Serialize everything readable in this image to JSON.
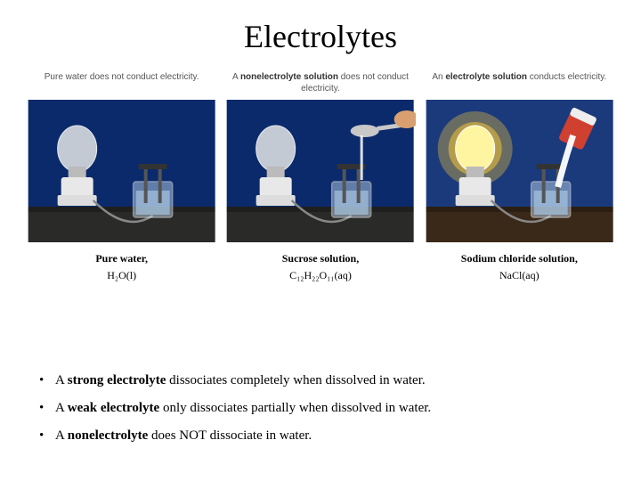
{
  "title": "Electrolytes",
  "panels": [
    {
      "caption_top_pre": "",
      "caption_top_bold": "",
      "caption_top_post": "Pure water does not conduct electricity.",
      "caption_bottom_name": "Pure water,",
      "caption_bottom_formula": "H₂O(l)",
      "bulb_glow": false,
      "show_spoon": false,
      "show_pour": false,
      "bg": "#0a2a6b",
      "table": "#2a2a28"
    },
    {
      "caption_top_pre": "A ",
      "caption_top_bold": "nonelectrolyte solution",
      "caption_top_post": " does not conduct electricity.",
      "caption_bottom_name": "Sucrose solution,",
      "caption_bottom_formula": "C₁₂H₂₂O₁₁(aq)",
      "bulb_glow": false,
      "show_spoon": true,
      "show_pour": false,
      "bg": "#0a2a6b",
      "table": "#2a2a28"
    },
    {
      "caption_top_pre": "An ",
      "caption_top_bold": "electrolyte solution",
      "caption_top_post": " conducts electricity.",
      "caption_bottom_name": "Sodium chloride solution,",
      "caption_bottom_formula": "NaCl(aq)",
      "bulb_glow": true,
      "show_spoon": false,
      "show_pour": true,
      "bg": "#1a3a7b",
      "table": "#3a2818"
    }
  ],
  "bullets": [
    {
      "pre": "A ",
      "bold": "strong electrolyte",
      "post": " dissociates completely when dissolved in water."
    },
    {
      "pre": "A ",
      "bold": "weak electrolyte",
      "post": " only dissociates partially when dissolved in water."
    },
    {
      "pre": "A ",
      "bold": "nonelectrolyte",
      "post": " does NOT dissociate in water."
    }
  ],
  "colors": {
    "bulb_off": "#d8dce0",
    "bulb_glow": "#fff4a0",
    "glow_halo": "#ffcc33",
    "socket": "#e8e8e8",
    "wire": "#888",
    "beaker_glass": "#b8d0e8",
    "beaker_water": "#a8c4e0",
    "electrode": "#555",
    "spoon": "#c8c8c8",
    "hand": "#d8a070",
    "container": "#d04030",
    "salt": "#ffffff"
  }
}
